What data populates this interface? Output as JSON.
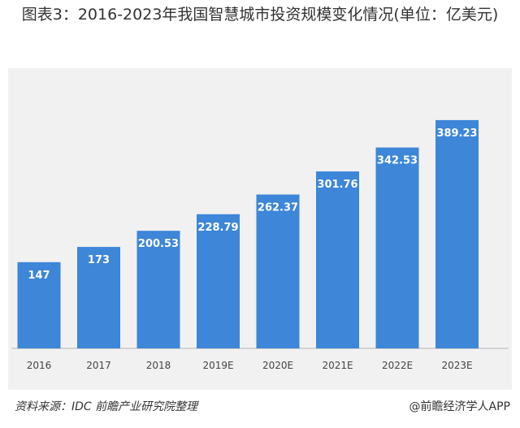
{
  "chart_data": {
    "type": "bar",
    "title": "图表3：2016-2023年我国智慧城市投资规模变化情况(单位：亿美元)",
    "categories": [
      "2016",
      "2017",
      "2018",
      "2019E",
      "2020E",
      "2021E",
      "2022E",
      "2023E"
    ],
    "values": [
      147,
      173,
      200.53,
      228.79,
      262.37,
      301.76,
      342.53,
      389.23
    ],
    "value_labels": [
      "147",
      "173",
      "200.53",
      "228.79",
      "262.37",
      "301.76",
      "342.53",
      "389.23"
    ],
    "ylim": [
      0,
      450
    ],
    "grid": false,
    "legend": "none",
    "bar_color": "#3d86d8"
  },
  "footer": {
    "source": "资料来源：IDC 前瞻产业研究院整理",
    "brand": "@前瞻经济学人APP"
  },
  "colors": {
    "panel_background": "#f1f1f1",
    "bar": "#3d86d8",
    "value_label": "#ffffff"
  }
}
